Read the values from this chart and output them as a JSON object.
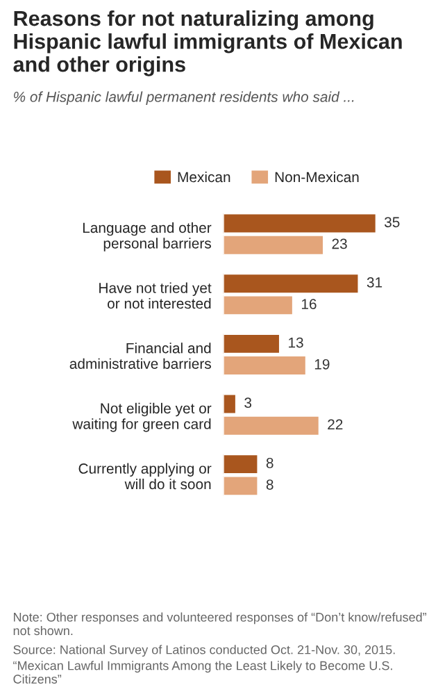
{
  "chart_data": {
    "type": "bar",
    "orientation": "horizontal",
    "title": "Reasons for not naturalizing among Hispanic lawful immigrants of Mexican and other origins",
    "subtitle": "% of Hispanic lawful permanent residents who said ...",
    "categories": [
      "Language and other\npersonal barriers",
      "Have not tried yet\nor not interested",
      "Financial and\nadministrative barriers",
      "Not eligible yet or\nwaiting for green card",
      "Currently applying or\nwill do it soon"
    ],
    "series": [
      {
        "name": "Mexican",
        "color": "#a9561e",
        "values": [
          35,
          31,
          13,
          3,
          8
        ]
      },
      {
        "name": "Non-Mexican",
        "color": "#e3a57a",
        "values": [
          23,
          16,
          19,
          22,
          8
        ]
      }
    ],
    "data_labels": true,
    "legend": "top",
    "grid": false,
    "annotations": [
      "Note: Other responses and volunteered responses of “Don’t know/refused” not shown.",
      "Source: National Survey of Latinos conducted Oct. 21-Nov. 30, 2015.",
      "“Mexican Lawful Immigrants Among the Least Likely to Become U.S. Citizens”"
    ]
  }
}
